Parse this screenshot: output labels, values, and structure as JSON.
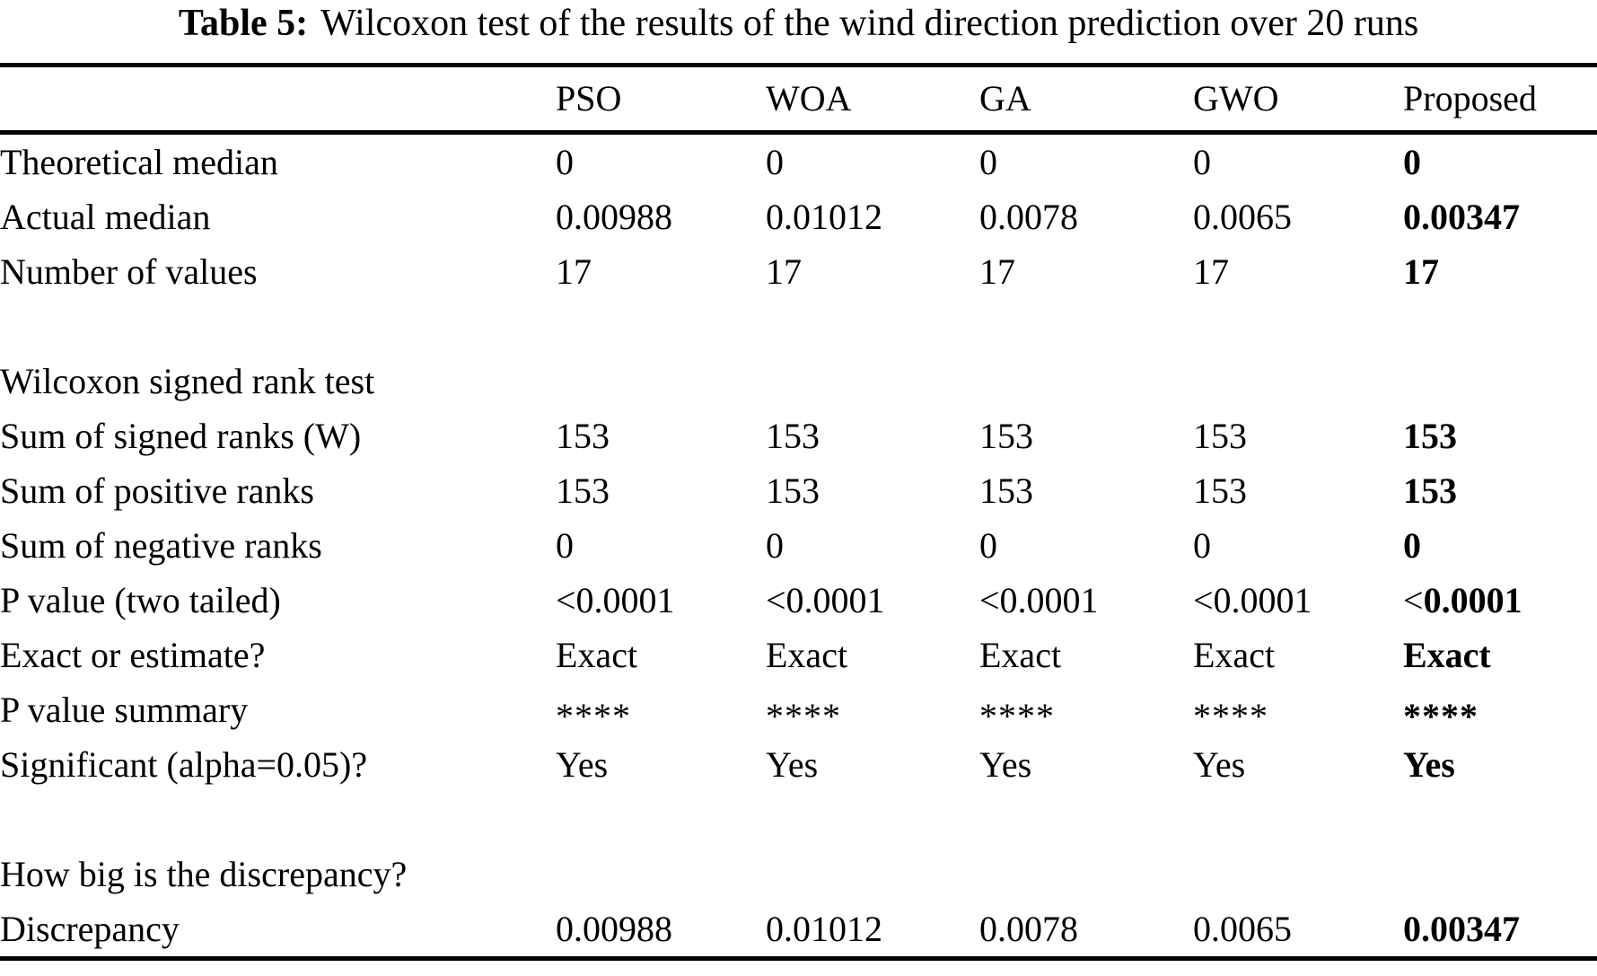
{
  "page": {
    "background_color": "#ffffff",
    "text_color": "#000000"
  },
  "table": {
    "caption": {
      "label": "Table 5:",
      "text": "Wilcoxon test of the results of the wind direction prediction over 20 runs"
    },
    "columns": [
      "",
      "PSO",
      "WOA",
      "GA",
      "GWO",
      "Proposed"
    ],
    "bold_column_index": 5,
    "sections": [
      {
        "header": null,
        "rows": [
          {
            "label": "Theoretical median",
            "values": [
              "0",
              "0",
              "0",
              "0",
              "0"
            ]
          },
          {
            "label": "Actual median",
            "values": [
              "0.00988",
              "0.01012",
              "0.0078",
              "0.0065",
              "0.00347"
            ]
          },
          {
            "label": "Number of values",
            "values": [
              "17",
              "17",
              "17",
              "17",
              "17"
            ]
          }
        ]
      },
      {
        "header": "Wilcoxon signed rank test",
        "rows": [
          {
            "label": "Sum of signed ranks (W)",
            "values": [
              "153",
              "153",
              "153",
              "153",
              "153"
            ]
          },
          {
            "label": "Sum of positive ranks",
            "values": [
              "153",
              "153",
              "153",
              "153",
              "153"
            ]
          },
          {
            "label": "Sum of negative ranks",
            "values": [
              "0",
              "0",
              "0",
              "0",
              "0"
            ]
          },
          {
            "label": "P value (two tailed)",
            "values": [
              "<0.0001",
              "<0.0001",
              "<0.0001",
              "<0.0001",
              "<0.0001"
            ]
          },
          {
            "label": "Exact or estimate?",
            "values": [
              "Exact",
              "Exact",
              "Exact",
              "Exact",
              "Exact"
            ]
          },
          {
            "label": "P value summary",
            "values": [
              "****",
              "****",
              "****",
              "****",
              "****"
            ],
            "style": "asterisks"
          },
          {
            "label": "Significant (alpha=0.05)?",
            "values": [
              "Yes",
              "Yes",
              "Yes",
              "Yes",
              "Yes"
            ]
          }
        ]
      },
      {
        "header": "How big is the discrepancy?",
        "rows": [
          {
            "label": "Discrepancy",
            "values": [
              "0.00988",
              "0.01012",
              "0.0078",
              "0.0065",
              "0.00347"
            ]
          }
        ]
      }
    ]
  }
}
